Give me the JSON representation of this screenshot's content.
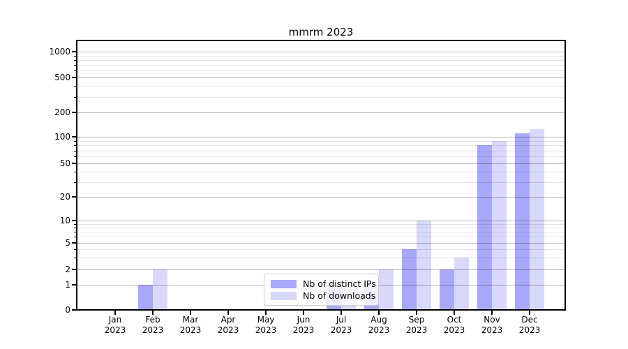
{
  "title": "mmrm 2023",
  "chart_data": {
    "type": "bar",
    "title": "mmrm 2023",
    "x_categories": [
      "Jan 2023",
      "Feb 2023",
      "Mar 2023",
      "Apr 2023",
      "May 2023",
      "Jun 2023",
      "Jul 2023",
      "Aug 2023",
      "Sep 2023",
      "Oct 2023",
      "Nov 2023",
      "Dec 2023"
    ],
    "series": [
      {
        "name": "Nb of distinct IPs",
        "color": "#a8a8fa",
        "values": [
          0,
          1,
          0,
          0,
          0,
          0,
          1,
          1,
          4,
          2,
          80,
          110
        ]
      },
      {
        "name": "Nb of downloads",
        "color": "#d8d8fa",
        "values": [
          0,
          2,
          0,
          0,
          0,
          0,
          1,
          2,
          10,
          3,
          90,
          125
        ]
      }
    ],
    "y_ticks": [
      0,
      1,
      2,
      5,
      10,
      20,
      50,
      100,
      200,
      500,
      1000
    ],
    "y_scale": "log above 1, linear 0-1",
    "y_range": [
      0,
      1350
    ],
    "grid": "horizontal, major and minor, drawn over bars",
    "legend_position": "inside plot, lower center"
  }
}
